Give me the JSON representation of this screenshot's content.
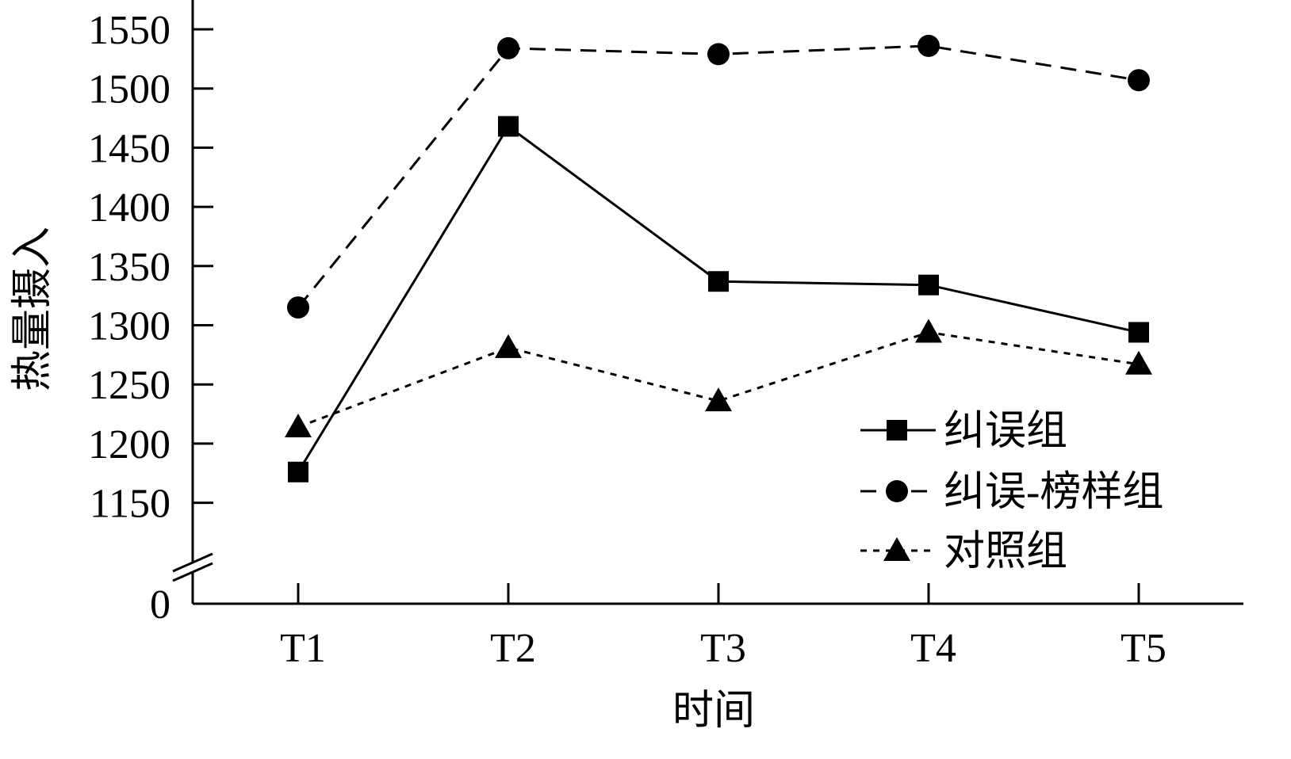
{
  "chart_data": {
    "type": "line",
    "title": "",
    "xlabel": "时间",
    "ylabel": "热量摄入",
    "categories": [
      "T1",
      "T2",
      "T3",
      "T4",
      "T5"
    ],
    "y_ticks": [
      1150,
      1200,
      1250,
      1300,
      1350,
      1400,
      1450,
      1500,
      1550
    ],
    "y_zero_label": "0",
    "ylim": [
      1100,
      1560
    ],
    "axis_break": true,
    "legend_position": "bottom-right",
    "grid": false,
    "series": [
      {
        "name": "纠误组",
        "marker": "square",
        "line": "solid",
        "values": [
          1176,
          1468,
          1337,
          1334,
          1294
        ]
      },
      {
        "name": "纠误-榜样组",
        "marker": "circle",
        "line": "long-dash",
        "values": [
          1315,
          1534,
          1529,
          1536,
          1507
        ]
      },
      {
        "name": "对照组",
        "marker": "triangle",
        "line": "short-dash",
        "values": [
          1214,
          1281,
          1236,
          1294,
          1267
        ]
      }
    ]
  }
}
